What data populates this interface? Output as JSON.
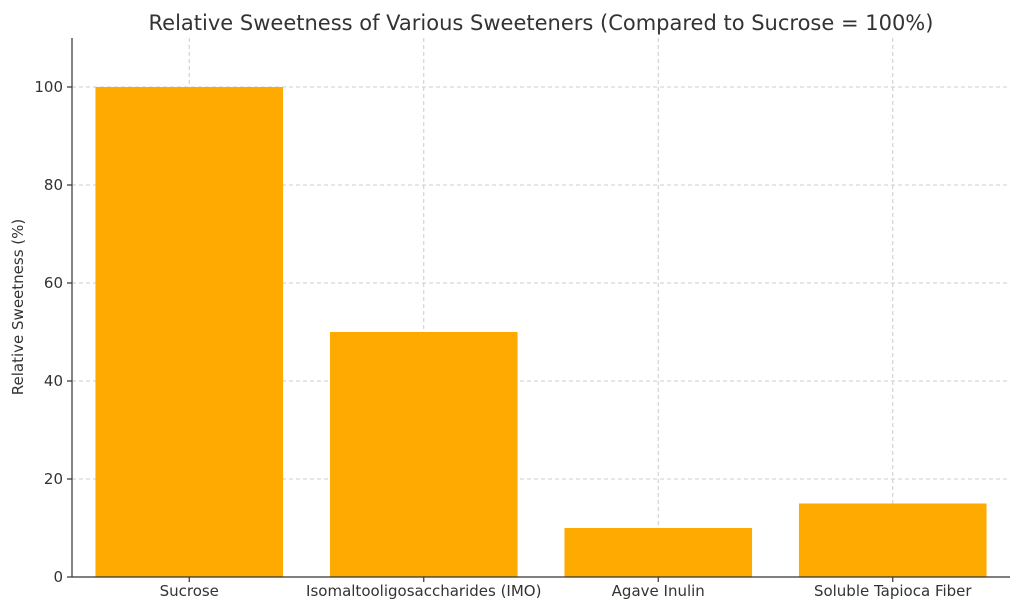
{
  "chart_data": {
    "type": "bar",
    "title": "Relative Sweetness of Various Sweeteners (Compared to Sucrose = 100%)",
    "xlabel": "",
    "ylabel": "Relative Sweetness (%)",
    "categories": [
      "Sucrose",
      "Isomaltooligosaccharides (IMO)",
      "Agave Inulin",
      "Soluble Tapioca Fiber"
    ],
    "values": [
      100,
      50,
      10,
      15
    ],
    "ylim": [
      0,
      110
    ],
    "yticks": [
      0,
      20,
      40,
      60,
      80,
      100
    ],
    "grid": true,
    "bar_color": "#FFAA00"
  }
}
